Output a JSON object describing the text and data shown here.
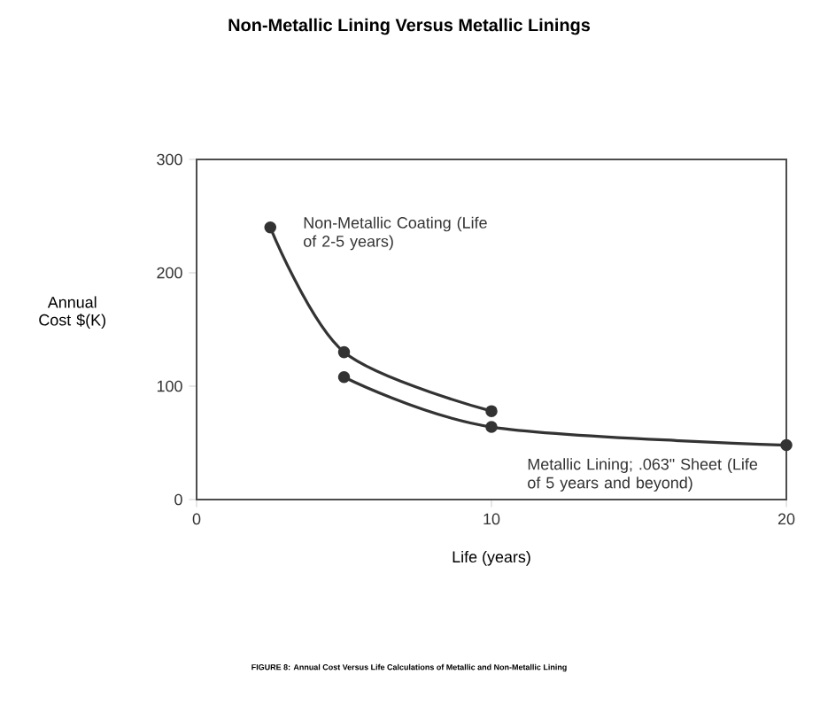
{
  "chart_data": {
    "type": "line",
    "title": "Non-Metallic Lining Versus Metallic Linings",
    "xlabel": "Life (years)",
    "ylabel": "Annual Cost $(K)",
    "annotations": [
      "FIGURE 8: Annual Cost Versus Life Calculations of Metallic and Non-Metallic Lining"
    ],
    "xlim": [
      0,
      20
    ],
    "ylim": [
      0,
      300
    ],
    "xticks": [
      0,
      10,
      20
    ],
    "yticks": [
      0,
      100,
      200,
      300
    ],
    "marker": "circle",
    "line_style": "solid",
    "series": [
      {
        "name": "Non-Metallic Coating (Life of 2-5 years)",
        "color": "#333333",
        "x": [
          2.5,
          5,
          10
        ],
        "values": [
          240,
          130,
          78
        ]
      },
      {
        "name": "Metallic Lining; .063\" Sheet (Life of 5 years and beyond)",
        "color": "#333333",
        "x": [
          5,
          10,
          20
        ],
        "values": [
          108,
          64,
          48
        ]
      }
    ]
  }
}
